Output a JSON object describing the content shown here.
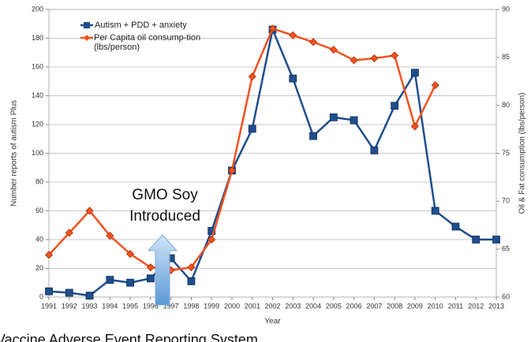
{
  "chart_data": {
    "type": "line",
    "x_label": "Year",
    "y_label": "Number reports of autism Plus",
    "y2_label": "Oil & Fat consumption (lbs/person)",
    "annotation": [
      "GMO Soy",
      "Introduced"
    ],
    "footer": "Vaccine Adverse Event Reporting System",
    "categories": [
      "1991",
      "1992",
      "1993",
      "1994",
      "1995",
      "1996",
      "1997",
      "1998",
      "1999",
      "2000",
      "2001",
      "2002",
      "2003",
      "2004",
      "2005",
      "2006",
      "2007",
      "2008",
      "2009",
      "2010",
      "2011",
      "2012",
      "2013"
    ],
    "series": [
      {
        "name": "Autism + PDD + anxiety",
        "color": "#1f4e8c",
        "marker": "square",
        "values": [
          4,
          3,
          1,
          12,
          10,
          13,
          27,
          11,
          46,
          88,
          117,
          186,
          152,
          112,
          125,
          123,
          102,
          133,
          156,
          60,
          49,
          40,
          40
        ]
      },
      {
        "name": "Per Capita oil consump-tion (lbs/person)",
        "color": "#f4511e",
        "marker": "diamond",
        "axis": "y2",
        "values": [
          64.4,
          66.7,
          69.0,
          66.4,
          64.5,
          63.1,
          62.8,
          63.1,
          66.0,
          73.2,
          83.0,
          88.0,
          87.3,
          86.6,
          85.8,
          84.7,
          84.9,
          85.2,
          77.8,
          82.1,
          null,
          null,
          null
        ]
      }
    ],
    "ylim": [
      0,
      200
    ],
    "yticks": [
      0,
      20,
      40,
      60,
      80,
      100,
      120,
      140,
      160,
      180,
      200
    ],
    "y2lim": [
      60,
      90
    ],
    "y2ticks": [
      60,
      65,
      70,
      75,
      80,
      85,
      90
    ],
    "grid": true,
    "legend": "upper left"
  }
}
